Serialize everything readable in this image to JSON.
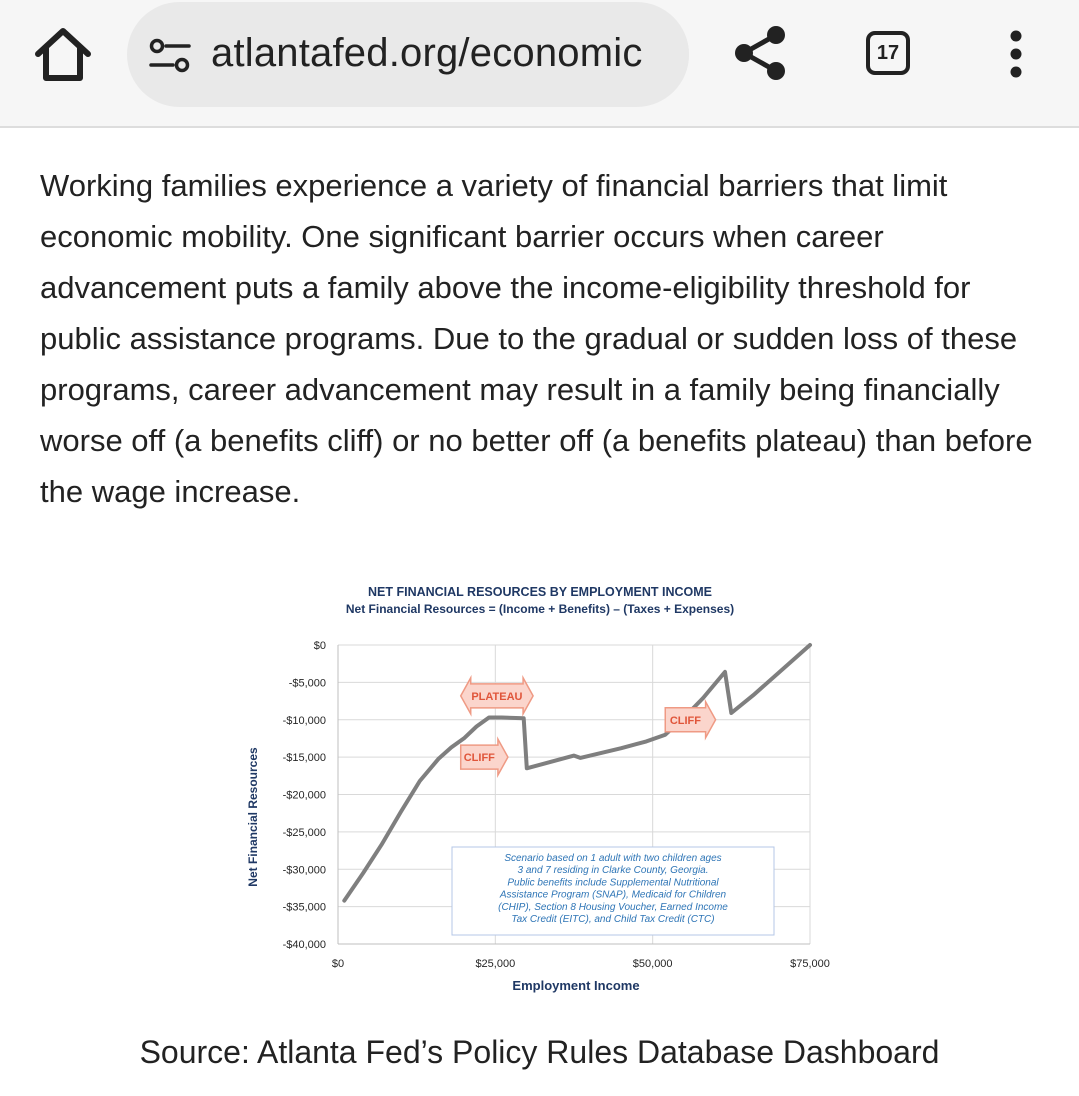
{
  "browser": {
    "url": "atlantafed.org/economic",
    "tab_count": "17",
    "icons": {
      "home": "home-icon",
      "site_settings": "tune-icon",
      "share": "share-icon",
      "tabs": "tab-switcher-icon",
      "menu": "more-vert-icon"
    }
  },
  "article": {
    "paragraph": "Working families experience a variety of financial barriers that limit economic mobility. One significant barrier occurs when career advancement puts a family above the income-eligibility threshold for public assistance programs. Due to the gradual or sudden loss of these programs, career advancement may result in a family being financially worse off (a benefits cliff) or no better off (a benefits plateau) than before the wage increase.",
    "source": "Source: Atlanta Fed’s Policy Rules Database Dashboard"
  },
  "chart_data": {
    "type": "line",
    "title": "NET FINANCIAL RESOURCES BY EMPLOYMENT INCOME",
    "subtitle": "Net Financial Resources = (Income + Benefits) – (Taxes + Expenses)",
    "xlabel": "Employment Income",
    "ylabel": "Net Financial Resources",
    "xlim": [
      0,
      75000
    ],
    "ylim": [
      -40000,
      0
    ],
    "x_ticks": [
      0,
      25000,
      50000,
      75000
    ],
    "x_tick_labels": [
      "$0",
      "$25,000",
      "$50,000",
      "$75,000"
    ],
    "y_ticks": [
      0,
      -5000,
      -10000,
      -15000,
      -20000,
      -25000,
      -30000,
      -35000,
      -40000
    ],
    "y_tick_labels": [
      "$0",
      "-$5,000",
      "-$10,000",
      "-$15,000",
      "-$20,000",
      "-$25,000",
      "-$30,000",
      "-$35,000",
      "-$40,000"
    ],
    "grid": true,
    "series": [
      {
        "color": "#7f7f7f",
        "x": [
          1000,
          4000,
          7000,
          10000,
          13000,
          16000,
          18000,
          20000,
          22000,
          24000,
          26000,
          29500,
          30000,
          37500,
          38500,
          45000,
          49000,
          52000,
          55000,
          58000,
          61500,
          62500,
          66000,
          75000
        ],
        "y": [
          -34200,
          -30500,
          -26600,
          -22300,
          -18200,
          -15200,
          -13700,
          -12500,
          -10900,
          -9700,
          -9700,
          -9800,
          -16500,
          -14800,
          -15100,
          -13800,
          -12900,
          -12000,
          -9700,
          -7100,
          -3600,
          -9100,
          -6700,
          0
        ]
      }
    ],
    "annotations": [
      {
        "text": "PLATEAU",
        "shape": "double-arrow",
        "x_from": 19500,
        "x_to": 31000,
        "y": -6800
      },
      {
        "text": "CLIFF",
        "shape": "right-arrow",
        "x_from": 19500,
        "x_to": 27000,
        "y": -15000
      },
      {
        "text": "CLIFF",
        "shape": "right-arrow",
        "x_from": 52000,
        "x_to": 60000,
        "y": -10000
      }
    ],
    "note": "Scenario based on 1 adult with two children ages 3 and 7 residing in Clarke County, Georgia. Public benefits include Supplemental Nutritional Assistance Program (SNAP), Medicaid for Children (CHIP), Section 8 Housing Voucher, Earned Income Tax Credit (EITC), and Child Tax Credit (CTC)",
    "colors": {
      "title": "#1f3864",
      "axis_label": "#1f3864",
      "callout_fill": "#fbd5cc",
      "callout_stroke": "#ef9a84",
      "callout_text": "#e0553a",
      "note_text": "#2e75b6",
      "note_border": "#b4c7e7"
    }
  }
}
